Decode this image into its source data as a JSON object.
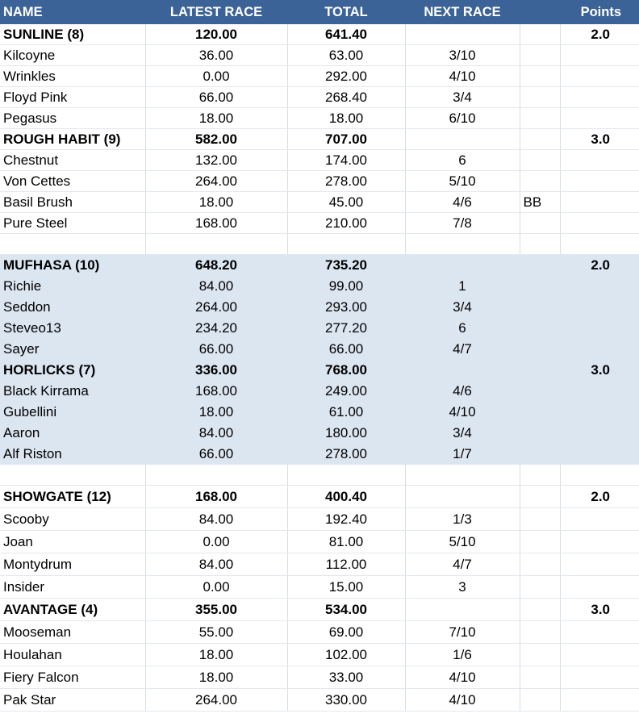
{
  "headers": {
    "name": "NAME",
    "latest": "LATEST RACE",
    "total": "TOTAL",
    "next": "NEXT RACE",
    "extra": "",
    "points": "Points"
  },
  "rows": [
    {
      "type": "team",
      "name": "SUNLINE (8)",
      "latest": "120.00",
      "total": "641.40",
      "next": "",
      "extra": "",
      "points": "2.0"
    },
    {
      "type": "horse",
      "name": "Kilcoyne",
      "latest": "36.00",
      "total": "63.00",
      "next": "3/10",
      "extra": "",
      "points": ""
    },
    {
      "type": "horse",
      "name": "Wrinkles",
      "latest": "0.00",
      "total": "292.00",
      "next": "4/10",
      "extra": "",
      "points": ""
    },
    {
      "type": "horse",
      "name": "Floyd Pink",
      "latest": "66.00",
      "total": "268.40",
      "next": "3/4",
      "extra": "",
      "points": ""
    },
    {
      "type": "horse",
      "name": "Pegasus",
      "latest": "18.00",
      "total": "18.00",
      "next": "6/10",
      "extra": "",
      "points": ""
    },
    {
      "type": "team",
      "name": "ROUGH HABIT (9)",
      "latest": "582.00",
      "total": "707.00",
      "next": "",
      "extra": "",
      "points": "3.0"
    },
    {
      "type": "horse",
      "name": "Chestnut",
      "latest": "132.00",
      "total": "174.00",
      "next": "6",
      "extra": "",
      "points": ""
    },
    {
      "type": "horse",
      "name": "Von Cettes",
      "latest": "264.00",
      "total": "278.00",
      "next": "5/10",
      "extra": "",
      "points": ""
    },
    {
      "type": "horse",
      "name": "Basil Brush",
      "latest": "18.00",
      "total": "45.00",
      "next": "4/6",
      "extra": "BB",
      "points": ""
    },
    {
      "type": "horse",
      "name": "Pure Steel",
      "latest": "168.00",
      "total": "210.00",
      "next": "7/8",
      "extra": "",
      "points": ""
    },
    {
      "type": "spacer"
    },
    {
      "type": "team",
      "shade": "blue",
      "name": "MUFHASA (10)",
      "latest": "648.20",
      "total": "735.20",
      "next": "",
      "extra": "",
      "points": "2.0"
    },
    {
      "type": "horse",
      "shade": "blue",
      "name": "Richie",
      "latest": "84.00",
      "total": "99.00",
      "next": "1",
      "extra": "",
      "points": ""
    },
    {
      "type": "horse",
      "shade": "blue",
      "name": "Seddon",
      "latest": "264.00",
      "total": "293.00",
      "next": "3/4",
      "extra": "",
      "points": ""
    },
    {
      "type": "horse",
      "shade": "blue",
      "name": "Steveo13",
      "latest": "234.20",
      "total": "277.20",
      "next": "6",
      "extra": "",
      "points": ""
    },
    {
      "type": "horse",
      "shade": "blue",
      "name": "Sayer",
      "latest": "66.00",
      "total": "66.00",
      "next": "4/7",
      "extra": "",
      "points": ""
    },
    {
      "type": "team",
      "shade": "blue",
      "name": "HORLICKS (7)",
      "latest": "336.00",
      "total": "768.00",
      "next": "",
      "extra": "",
      "points": "3.0"
    },
    {
      "type": "horse",
      "shade": "blue",
      "name": "Black Kirrama",
      "latest": "168.00",
      "total": "249.00",
      "next": "4/6",
      "extra": "",
      "points": ""
    },
    {
      "type": "horse",
      "shade": "blue",
      "name": "Gubellini",
      "latest": "18.00",
      "total": "61.00",
      "next": "4/10",
      "extra": "",
      "points": ""
    },
    {
      "type": "horse",
      "shade": "blue",
      "name": "Aaron",
      "latest": "84.00",
      "total": "180.00",
      "next": "3/4",
      "extra": "",
      "points": ""
    },
    {
      "type": "horse",
      "shade": "blue",
      "name": "Alf Riston",
      "latest": "66.00",
      "total": "278.00",
      "next": "1/7",
      "extra": "",
      "points": ""
    },
    {
      "type": "spacer"
    },
    {
      "type": "team",
      "tall": true,
      "name": "SHOWGATE (12)",
      "latest": "168.00",
      "total": "400.40",
      "next": "",
      "extra": "",
      "points": "2.0"
    },
    {
      "type": "horse",
      "tall": true,
      "name": "Scooby",
      "latest": "84.00",
      "total": "192.40",
      "next": "1/3",
      "extra": "",
      "points": ""
    },
    {
      "type": "horse",
      "tall": true,
      "name": "Joan",
      "latest": "0.00",
      "total": "81.00",
      "next": "5/10",
      "extra": "",
      "points": ""
    },
    {
      "type": "horse",
      "tall": true,
      "name": "Montydrum",
      "latest": "84.00",
      "total": "112.00",
      "next": "4/7",
      "extra": "",
      "points": ""
    },
    {
      "type": "horse",
      "tall": true,
      "name": "Insider",
      "latest": "0.00",
      "total": "15.00",
      "next": "3",
      "extra": "",
      "points": ""
    },
    {
      "type": "team",
      "tall": true,
      "name": "AVANTAGE (4)",
      "latest": "355.00",
      "total": "534.00",
      "next": "",
      "extra": "",
      "points": "3.0"
    },
    {
      "type": "horse",
      "tall": true,
      "name": "Mooseman",
      "latest": "55.00",
      "total": "69.00",
      "next": "7/10",
      "extra": "",
      "points": ""
    },
    {
      "type": "horse",
      "tall": true,
      "name": "Houlahan",
      "latest": "18.00",
      "total": "102.00",
      "next": "1/6",
      "extra": "",
      "points": ""
    },
    {
      "type": "horse",
      "tall": true,
      "name": "Fiery Falcon",
      "latest": "18.00",
      "total": "33.00",
      "next": "4/10",
      "extra": "",
      "points": ""
    },
    {
      "type": "horse",
      "tall": true,
      "name": "Pak Star",
      "latest": "264.00",
      "total": "330.00",
      "next": "4/10",
      "extra": "",
      "points": ""
    }
  ]
}
